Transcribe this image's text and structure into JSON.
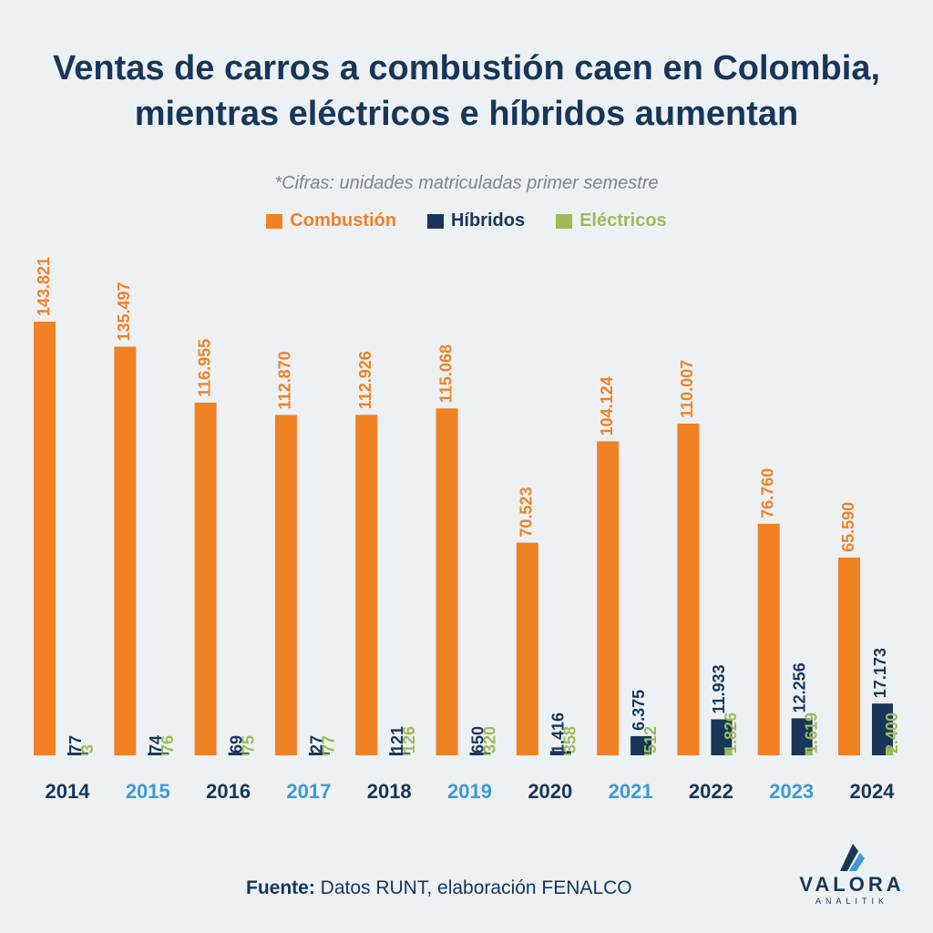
{
  "header": {
    "title_line1": "Ventas de carros a combustión caen en Colombia,",
    "title_line2": "mientras eléctricos e híbridos aumentan",
    "subtitle": "*Cifras: unidades matriculadas primer semestre"
  },
  "footer": {
    "source_label": "Fuente:",
    "source_text": " Datos RUNT, elaboración FENALCO"
  },
  "logo": {
    "word": "VALORA",
    "sub": "ANALITIK"
  },
  "colors": {
    "combustion": "#f08124",
    "hibridos": "#17365a",
    "electricos": "#9bbb59",
    "year_dark": "#17365a",
    "year_blue": "#3a9ad9"
  },
  "chart_data": {
    "type": "bar",
    "title": "Ventas de carros a combustión caen en Colombia, mientras eléctricos e híbridos aumentan",
    "subtitle": "*Cifras: unidades matriculadas primer semestre",
    "xlabel": "",
    "ylabel": "",
    "ylim": [
      0,
      150000
    ],
    "legend_position": "top-center",
    "grid": false,
    "categories": [
      "2014",
      "2015",
      "2016",
      "2017",
      "2018",
      "2019",
      "2020",
      "2021",
      "2022",
      "2023",
      "2024"
    ],
    "series": [
      {
        "name": "Combustión",
        "values": [
          143821,
          135497,
          116955,
          112870,
          112926,
          115068,
          70523,
          104124,
          110007,
          76760,
          65590
        ],
        "labels": [
          "143.821",
          "135.497",
          "116.955",
          "112.870",
          "112.926",
          "115.068",
          "70.523",
          "104.124",
          "110.007",
          "76.760",
          "65.590"
        ]
      },
      {
        "name": "Híbridos",
        "values": [
          77,
          74,
          69,
          27,
          121,
          650,
          1416,
          6375,
          11933,
          12256,
          17173
        ],
        "labels": [
          "77",
          "74",
          "69",
          "27",
          "121",
          "650",
          "1.416",
          "6.375",
          "11.933",
          "12.256",
          "17.173"
        ]
      },
      {
        "name": "Eléctricos",
        "values": [
          3,
          76,
          75,
          77,
          126,
          320,
          358,
          512,
          1826,
          1619,
          2400
        ],
        "labels": [
          "3",
          "76",
          "75",
          "77",
          "126",
          "320",
          "358",
          "512",
          "1.826",
          "1.619",
          "2.400"
        ]
      }
    ]
  }
}
